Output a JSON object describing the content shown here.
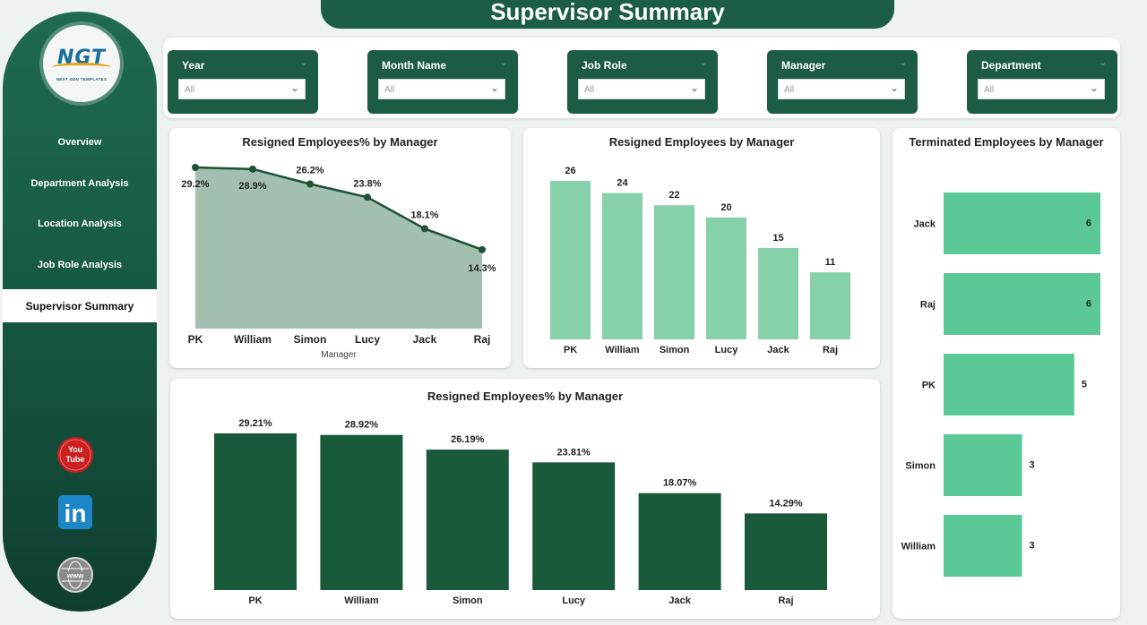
{
  "header": {
    "title": "Supervisor Summary"
  },
  "logo": {
    "text": "NGT",
    "subtitle": "NEXT GEN TEMPLATES"
  },
  "sidebar": {
    "items": [
      {
        "label": "Overview"
      },
      {
        "label": "Department Analysis"
      },
      {
        "label": "Location Analysis"
      },
      {
        "label": "Job Role Analysis"
      },
      {
        "label": "Supervisor Summary"
      }
    ],
    "social": [
      {
        "icon": "youtube-icon",
        "text_top": "You",
        "text_bottom": "Tube"
      },
      {
        "icon": "linkedin-icon",
        "text": "in"
      },
      {
        "icon": "www-icon",
        "text": "www"
      }
    ]
  },
  "filters": [
    {
      "label": "Year",
      "value": "All"
    },
    {
      "label": "Month Name",
      "value": "All"
    },
    {
      "label": "Job Role",
      "value": "All"
    },
    {
      "label": "Manager",
      "value": "All"
    },
    {
      "label": "Department",
      "value": "All"
    }
  ],
  "colors": {
    "dark_green": "#1b5e45",
    "bar_dark": "#1a5a3c",
    "bar_light": "#86d1a9",
    "bar_mid": "#5bc898",
    "area_fill": "#a3bfb0",
    "line": "#1d5236"
  },
  "chart_data": [
    {
      "type": "area",
      "title": "Resigned Employees% by Manager",
      "xlabel": "Manager",
      "categories": [
        "PK",
        "William",
        "Simon",
        "Lucy",
        "Jack",
        "Raj"
      ],
      "values": [
        29.2,
        28.9,
        26.2,
        23.8,
        18.1,
        14.3
      ],
      "labels": [
        "29.2%",
        "28.9%",
        "26.2%",
        "23.8%",
        "18.1%",
        "14.3%"
      ]
    },
    {
      "type": "bar",
      "title": "Resigned Employees by Manager",
      "categories": [
        "PK",
        "William",
        "Simon",
        "Lucy",
        "Jack",
        "Raj"
      ],
      "values": [
        26,
        24,
        22,
        20,
        15,
        11
      ]
    },
    {
      "type": "bar",
      "orientation": "horizontal",
      "title": "Terminated Employees by Manager",
      "categories": [
        "Jack",
        "Raj",
        "PK",
        "Simon",
        "William"
      ],
      "values": [
        6,
        6,
        5,
        3,
        3
      ]
    },
    {
      "type": "bar",
      "title": "Resigned Employees% by Manager",
      "categories": [
        "PK",
        "William",
        "Simon",
        "Lucy",
        "Jack",
        "Raj"
      ],
      "values": [
        29.21,
        28.92,
        26.19,
        23.81,
        18.07,
        14.29
      ],
      "labels": [
        "29.21%",
        "28.92%",
        "26.19%",
        "23.81%",
        "18.07%",
        "14.29%"
      ]
    }
  ]
}
